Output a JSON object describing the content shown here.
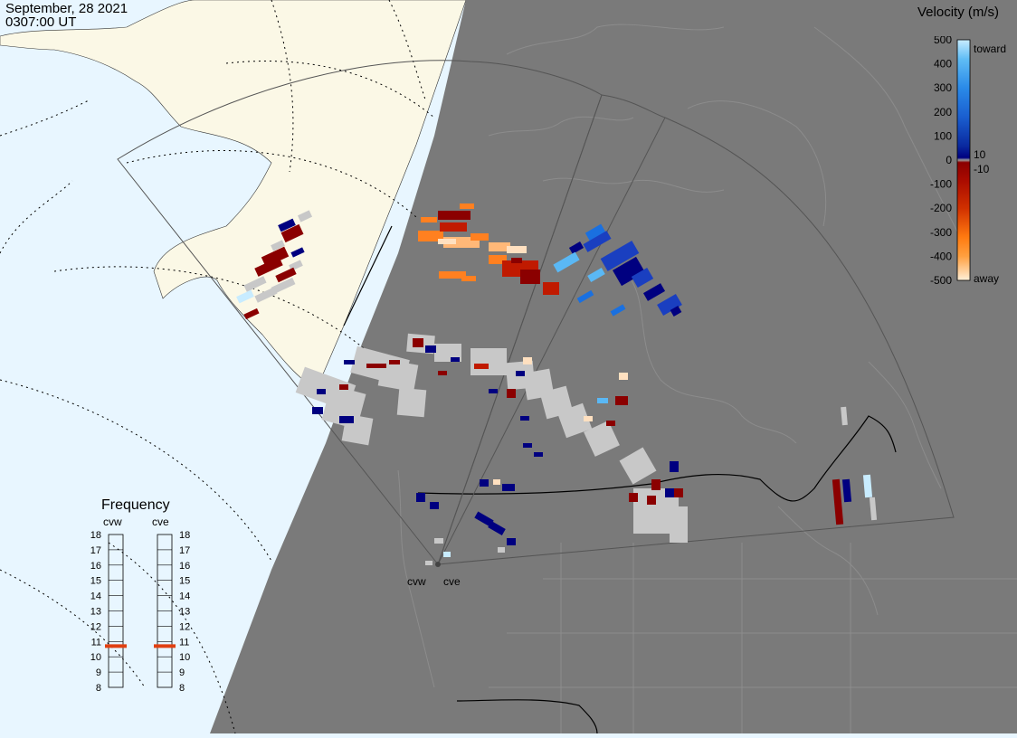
{
  "header": {
    "date": "September, 28 2021",
    "time": "0307:00 UT"
  },
  "legend": {
    "title": "Velocity (m/s)",
    "ticks": [
      "500",
      "400",
      "300",
      "200",
      "100",
      "0",
      "-100",
      "-200",
      "-300",
      "-400",
      "-500"
    ],
    "inner_pos": "10",
    "inner_neg": "-10",
    "toward": "toward",
    "away": "away",
    "colors": [
      "#fff0d8",
      "#ffb060",
      "#ff8000",
      "#e04000",
      "#c01a00",
      "#8b0000",
      "#9a9a9a",
      "#000080",
      "#1030b0",
      "#1a5fd0",
      "#2a8ae8",
      "#60bdf5",
      "#c8ecff"
    ]
  },
  "frequency": {
    "title": "Frequency",
    "radars": [
      "cvw",
      "cve"
    ],
    "scale": [
      "18",
      "17",
      "16",
      "15",
      "14",
      "13",
      "12",
      "11",
      "10",
      "9",
      "8"
    ],
    "cvw_mhz": 10.7,
    "cve_mhz": 10.7,
    "marker_color": "#e04010"
  },
  "map": {
    "site_labels": [
      "cvw",
      "cve"
    ],
    "dark_color": "#7a7a7a",
    "light_land": "#fbf8e6",
    "ocean": "#e8f6ff"
  }
}
